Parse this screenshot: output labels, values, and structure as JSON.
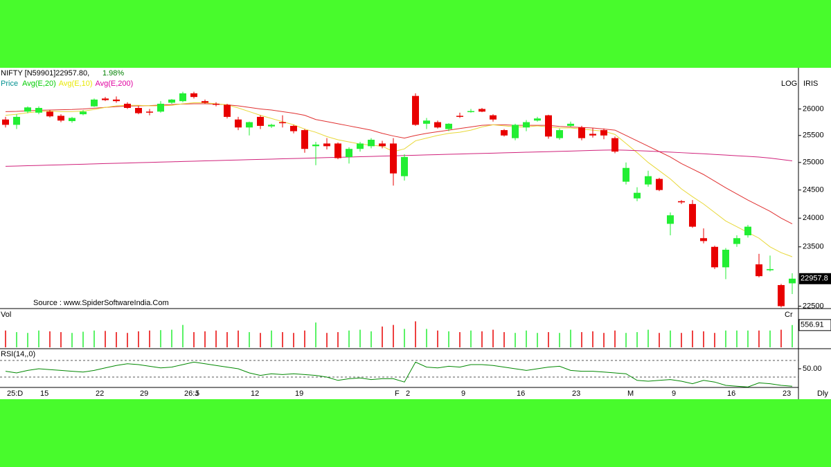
{
  "chart_data": {
    "type": "candlestick",
    "title": "NIFTY [N59901]22957.80,",
    "change": "1.98%",
    "price_label": "Price",
    "price_label_color": "#009090",
    "scale_mode": "LOG",
    "indicator_label": "IRIS",
    "log_scale": true,
    "source": "Source : www.SpiderSoftwareIndia.Com",
    "period_label": "Dly",
    "up_color": "#22ee33",
    "down_color": "#e80000",
    "categories": [
      "25:D",
      null,
      null,
      "15",
      null,
      null,
      null,
      null,
      "22",
      null,
      null,
      null,
      "29",
      null,
      null,
      null,
      "26:J",
      "5",
      null,
      null,
      null,
      null,
      "12",
      null,
      null,
      null,
      "19",
      null,
      null,
      null,
      null,
      null,
      null,
      null,
      null,
      "F",
      "2",
      null,
      null,
      null,
      null,
      "9",
      null,
      null,
      null,
      null,
      "16",
      null,
      null,
      null,
      null,
      "23",
      null,
      null,
      null,
      null,
      "M",
      null,
      null,
      null,
      "9",
      null,
      null,
      null,
      null,
      "16",
      null,
      null,
      null,
      null,
      "23",
      null
    ],
    "open": [
      25800,
      25700,
      25950,
      25930,
      25950,
      25870,
      25770,
      25900,
      26050,
      26200,
      26180,
      26100,
      26020,
      25950,
      25950,
      26120,
      26150,
      26300,
      26150,
      26100,
      26080,
      25800,
      25650,
      25850,
      25670,
      25750,
      25680,
      25600,
      25300,
      25350,
      25350,
      25100,
      25250,
      25300,
      25350,
      25350,
      24750,
      26250,
      25720,
      25750,
      25620,
      25870,
      25950,
      26000,
      25880,
      25600,
      25450,
      25650,
      25780,
      25880,
      25450,
      25680,
      25650,
      25530,
      25600,
      25450,
      24650,
      24350,
      24600,
      24700,
      23900,
      24300,
      24250,
      23650,
      23500,
      23150,
      23550,
      23700,
      23200,
      23100,
      22850,
      22880
    ],
    "high": [
      25850,
      25900,
      26050,
      26050,
      25980,
      25900,
      25850,
      25980,
      26200,
      26230,
      26240,
      26130,
      26060,
      26000,
      26150,
      26190,
      26330,
      26330,
      26180,
      26130,
      26100,
      25850,
      25760,
      25880,
      25720,
      25880,
      25700,
      25620,
      25380,
      25450,
      25370,
      25280,
      25380,
      25450,
      25400,
      25450,
      25150,
      26300,
      25830,
      25780,
      25730,
      25930,
      26000,
      26020,
      25900,
      25620,
      25720,
      25790,
      25850,
      25890,
      25630,
      25760,
      25680,
      25640,
      25630,
      25480,
      25000,
      24550,
      24850,
      24720,
      24100,
      24320,
      24320,
      23820,
      23520,
      23480,
      23700,
      23880,
      23380,
      23350,
      22870,
      23050
    ],
    "low": [
      25650,
      25620,
      25920,
      25900,
      25840,
      25750,
      25740,
      25880,
      26040,
      26150,
      26120,
      26000,
      25900,
      25880,
      25930,
      26100,
      26130,
      26200,
      26100,
      26050,
      25820,
      25600,
      25500,
      25620,
      25640,
      25650,
      25540,
      25180,
      24950,
      25240,
      25060,
      24980,
      25200,
      25260,
      25260,
      24580,
      24670,
      25680,
      25620,
      25630,
      25580,
      25830,
      25930,
      25940,
      25760,
      25480,
      25410,
      25580,
      25760,
      25440,
      25420,
      25660,
      25410,
      25460,
      25430,
      25170,
      24600,
      24300,
      24560,
      24480,
      23700,
      24250,
      23830,
      23560,
      23120,
      22950,
      23500,
      23660,
      22980,
      23080,
      22480,
      22700
    ],
    "close": [
      25700,
      25850,
      26030,
      26020,
      25860,
      25780,
      25830,
      25950,
      26180,
      26170,
      26150,
      26020,
      25920,
      25930,
      26100,
      26180,
      26300,
      26230,
      26120,
      26080,
      25850,
      25650,
      25750,
      25680,
      25700,
      25730,
      25580,
      25250,
      25330,
      25300,
      25080,
      25250,
      25350,
      25420,
      25300,
      24800,
      25100,
      25700,
      25780,
      25650,
      25720,
      25850,
      25960,
      25950,
      25800,
      25500,
      25700,
      25750,
      25820,
      25480,
      25600,
      25720,
      25450,
      25500,
      25500,
      25200,
      24900,
      24450,
      24750,
      24500,
      24050,
      24280,
      23850,
      23600,
      23150,
      23450,
      23650,
      23850,
      23000,
      23120,
      22500,
      22957.8
    ],
    "averages": [
      {
        "name": "Avg(E,20)",
        "color": "#00cc00",
        "line_color": "#e03030",
        "values": [
          25950,
          25955,
          25965,
          25975,
          25980,
          25985,
          25990,
          26000,
          26015,
          26030,
          26045,
          26055,
          26060,
          26065,
          26075,
          26085,
          26095,
          26100,
          26100,
          26095,
          26080,
          26060,
          26030,
          26000,
          25980,
          25950,
          25920,
          25880,
          25800,
          25760,
          25720,
          25680,
          25640,
          25600,
          25540,
          25490,
          25450,
          25500,
          25540,
          25570,
          25600,
          25630,
          25660,
          25690,
          25700,
          25700,
          25690,
          25690,
          25690,
          25690,
          25670,
          25660,
          25650,
          25640,
          25620,
          25600,
          25500,
          25400,
          25300,
          25200,
          25100,
          24980,
          24880,
          24780,
          24660,
          24540,
          24430,
          24320,
          24220,
          24120,
          24000,
          23900
        ]
      },
      {
        "name": "Avg(E,10)",
        "color": "#e8e800",
        "line_color": "#e8d838",
        "values": [
          25880,
          25900,
          25930,
          25950,
          25960,
          25950,
          25950,
          25960,
          25990,
          26030,
          26060,
          26070,
          26070,
          26060,
          26060,
          26070,
          26100,
          26120,
          26120,
          26100,
          26080,
          26020,
          25950,
          25880,
          25820,
          25760,
          25700,
          25620,
          25560,
          25480,
          25420,
          25380,
          25340,
          25320,
          25300,
          25200,
          25250,
          25400,
          25450,
          25500,
          25540,
          25560,
          25600,
          25660,
          25700,
          25680,
          25660,
          25660,
          25680,
          25660,
          25640,
          25640,
          25620,
          25600,
          25580,
          25520,
          25350,
          25180,
          25000,
          24850,
          24700,
          24520,
          24380,
          24250,
          24100,
          23950,
          23850,
          23750,
          23650,
          23500,
          23400,
          23330
        ]
      },
      {
        "name": "Avg(E,200)",
        "color": "#e000a0",
        "line_color": "#d0207a",
        "values": [
          24930,
          24935,
          24941,
          24946,
          24952,
          24957,
          24963,
          24968,
          24974,
          24980,
          24985,
          24990,
          24996,
          25001,
          25007,
          25012,
          25018,
          25023,
          25029,
          25034,
          25040,
          25045,
          25051,
          25056,
          25062,
          25067,
          25073,
          25078,
          25084,
          25090,
          25095,
          25100,
          25106,
          25111,
          25117,
          25122,
          25128,
          25133,
          25139,
          25144,
          25150,
          25155,
          25161,
          25166,
          25172,
          25178,
          25183,
          25188,
          25194,
          25199,
          25205,
          25210,
          25216,
          25222,
          25227,
          25230,
          25225,
          25218,
          25210,
          25200,
          25190,
          25180,
          25170,
          25160,
          25148,
          25136,
          25124,
          25112,
          25100,
          25080,
          25055,
          25030
        ]
      }
    ],
    "ylim": [
      22460,
      26770
    ],
    "yticks": [
      22500,
      23500,
      24000,
      24500,
      25000,
      25500,
      26000
    ],
    "volume": {
      "label": "Vol",
      "unit": "Cr",
      "ylim": [
        0,
        900
      ],
      "values": [
        420,
        380,
        360,
        420,
        400,
        380,
        360,
        390,
        420,
        410,
        380,
        360,
        400,
        420,
        430,
        440,
        560,
        380,
        400,
        420,
        380,
        420,
        380,
        360,
        420,
        380,
        360,
        420,
        620,
        360,
        380,
        420,
        440,
        400,
        520,
        560,
        460,
        650,
        460,
        420,
        400,
        380,
        420,
        400,
        440,
        380,
        360,
        420,
        360,
        380,
        360,
        440,
        380,
        400,
        360,
        420,
        360,
        380,
        440,
        360,
        420,
        360,
        420,
        400,
        360,
        420,
        420,
        420,
        420,
        420,
        440,
        556.91
      ]
    },
    "rsi": {
      "label": "RSI(14,,0)",
      "color": "#008800",
      "ylim": [
        15,
        72.5
      ],
      "yticks": [
        {
          "value": 50,
          "label": "50.00"
        }
      ],
      "levels": [
        60,
        40
      ],
      "values": [
        47,
        45,
        48,
        50,
        49,
        48,
        47,
        46,
        48,
        51,
        54,
        56,
        55,
        53,
        51,
        52,
        55,
        58,
        56,
        54,
        52,
        50,
        45,
        42,
        44,
        43,
        44,
        43,
        42,
        40,
        36,
        38,
        39,
        37,
        38,
        38,
        34,
        58,
        52,
        51,
        53,
        52,
        55,
        55,
        54,
        52,
        50,
        48,
        50,
        52,
        53,
        48,
        47,
        47,
        46,
        45,
        44,
        36,
        35,
        36,
        37,
        35,
        32,
        36,
        34,
        30,
        29,
        28,
        33,
        32,
        30,
        29
      ]
    }
  }
}
